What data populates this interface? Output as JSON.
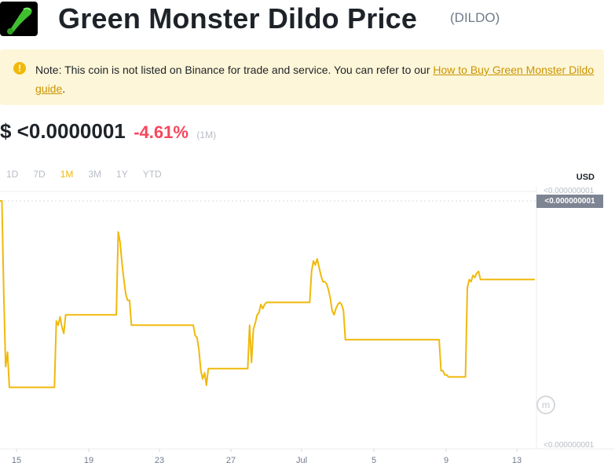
{
  "header": {
    "title": "Green Monster Dildo Price",
    "ticker": "(DILDO)",
    "logo_icon": "green-coin-logo-icon"
  },
  "note": {
    "icon": "exclamation-icon",
    "text_before": "Note: This coin is not listed on Binance for trade and service. You can refer to our ",
    "link_text": "How to Buy Green Monster Dildo guide",
    "text_after": "."
  },
  "price": {
    "value": "$ <0.0000001",
    "change": "-4.61%",
    "period": "(1M)"
  },
  "tabs": [
    {
      "label": "1D",
      "active": false
    },
    {
      "label": "7D",
      "active": false
    },
    {
      "label": "1M",
      "active": true
    },
    {
      "label": "3M",
      "active": false
    },
    {
      "label": "1Y",
      "active": false
    },
    {
      "label": "YTD",
      "active": false
    }
  ],
  "currency": "USD",
  "y_labels": {
    "top": "<0.000000001",
    "current": "<0.000000001",
    "bottom": "<0.000000001"
  },
  "colors": {
    "line": "#f0b90b",
    "negative": "#f6465d",
    "note_bg": "#fef6d8"
  },
  "chart_data": {
    "type": "line",
    "x_ticks": [
      "15",
      "19",
      "23",
      "27",
      "Jul",
      "5",
      "9",
      "13"
    ],
    "series": [
      {
        "values_relative": [
          1.0,
          1.0,
          0.55,
          0.2,
          0.27,
          0.1,
          0.1,
          0.1,
          0.1,
          0.1,
          0.1,
          0.1,
          0.1,
          0.1,
          0.1,
          0.1,
          0.1,
          0.1,
          0.1,
          0.1,
          0.1,
          0.1,
          0.1,
          0.1,
          0.1,
          0.1,
          0.1,
          0.1,
          0.1,
          0.1,
          0.42,
          0.4,
          0.44,
          0.39,
          0.36,
          0.45,
          0.45,
          0.45,
          0.45,
          0.45,
          0.45,
          0.45,
          0.45,
          0.45,
          0.45,
          0.45,
          0.45,
          0.45,
          0.45,
          0.45,
          0.45,
          0.45,
          0.45,
          0.45,
          0.45,
          0.45,
          0.45,
          0.45,
          0.45,
          0.45,
          0.45,
          0.45,
          0.45,
          0.85,
          0.8,
          0.7,
          0.62,
          0.55,
          0.52,
          0.52,
          0.4,
          0.4,
          0.4,
          0.4,
          0.4,
          0.4,
          0.4,
          0.4,
          0.4,
          0.4,
          0.4,
          0.4,
          0.4,
          0.4,
          0.4,
          0.4,
          0.4,
          0.4,
          0.4,
          0.4,
          0.4,
          0.4,
          0.4,
          0.4,
          0.4,
          0.4,
          0.4,
          0.4,
          0.4,
          0.4,
          0.4,
          0.4,
          0.4,
          0.4,
          0.35,
          0.34,
          0.28,
          0.18,
          0.14,
          0.17,
          0.11,
          0.19,
          0.19,
          0.19,
          0.19,
          0.19,
          0.19,
          0.19,
          0.19,
          0.19,
          0.19,
          0.19,
          0.19,
          0.19,
          0.19,
          0.19,
          0.19,
          0.19,
          0.19,
          0.19,
          0.19,
          0.19,
          0.19,
          0.4,
          0.22,
          0.38,
          0.41,
          0.45,
          0.46,
          0.5,
          0.48,
          0.5,
          0.51,
          0.51,
          0.51,
          0.51,
          0.51,
          0.51,
          0.51,
          0.51,
          0.51,
          0.51,
          0.51,
          0.51,
          0.51,
          0.51,
          0.51,
          0.51,
          0.51,
          0.51,
          0.51,
          0.51,
          0.51,
          0.51,
          0.51,
          0.51,
          0.66,
          0.71,
          0.69,
          0.72,
          0.68,
          0.64,
          0.61,
          0.61,
          0.6,
          0.57,
          0.53,
          0.47,
          0.45,
          0.48,
          0.5,
          0.51,
          0.5,
          0.47,
          0.33,
          0.33,
          0.33,
          0.33,
          0.33,
          0.33,
          0.33,
          0.33,
          0.33,
          0.33,
          0.33,
          0.33,
          0.33,
          0.33,
          0.33,
          0.33,
          0.33,
          0.33,
          0.33,
          0.33,
          0.33,
          0.33,
          0.33,
          0.33,
          0.33,
          0.33,
          0.33,
          0.33,
          0.33,
          0.33,
          0.33,
          0.33,
          0.33,
          0.33,
          0.33,
          0.33,
          0.33,
          0.33,
          0.33,
          0.33,
          0.33,
          0.33,
          0.33,
          0.33,
          0.33,
          0.33,
          0.33,
          0.33,
          0.33,
          0.33,
          0.33,
          0.18,
          0.18,
          0.16,
          0.16,
          0.15,
          0.15,
          0.15,
          0.15,
          0.15,
          0.15,
          0.15,
          0.15,
          0.15,
          0.15,
          0.58,
          0.62,
          0.61,
          0.64,
          0.63,
          0.65,
          0.66,
          0.62,
          0.62,
          0.62,
          0.62,
          0.62,
          0.62,
          0.62,
          0.62,
          0.62,
          0.62,
          0.62,
          0.62,
          0.62,
          0.62,
          0.62,
          0.62,
          0.62,
          0.62,
          0.62,
          0.62,
          0.62,
          0.62,
          0.62,
          0.62,
          0.62,
          0.62,
          0.62,
          0.62,
          0.62,
          0.62
        ]
      }
    ]
  },
  "watermark_icon": "coinmarketcap-watermark-icon"
}
